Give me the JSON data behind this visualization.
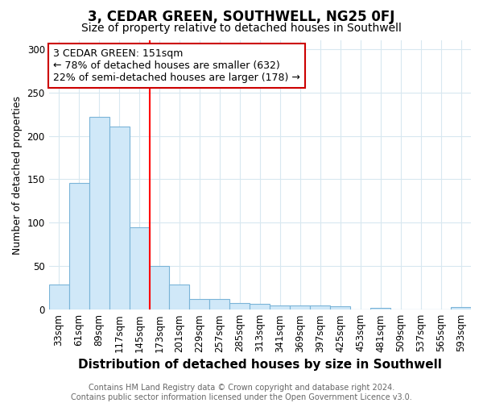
{
  "title": "3, CEDAR GREEN, SOUTHWELL, NG25 0FJ",
  "subtitle": "Size of property relative to detached houses in Southwell",
  "xlabel": "Distribution of detached houses by size in Southwell",
  "ylabel": "Number of detached properties",
  "categories": [
    "33sqm",
    "61sqm",
    "89sqm",
    "117sqm",
    "145sqm",
    "173sqm",
    "201sqm",
    "229sqm",
    "257sqm",
    "285sqm",
    "313sqm",
    "341sqm",
    "369sqm",
    "397sqm",
    "425sqm",
    "453sqm",
    "481sqm",
    "509sqm",
    "537sqm",
    "565sqm",
    "593sqm"
  ],
  "values": [
    29,
    146,
    222,
    211,
    95,
    50,
    29,
    12,
    12,
    8,
    7,
    5,
    5,
    5,
    4,
    0,
    2,
    0,
    0,
    0,
    3
  ],
  "bar_color": "#d0e8f8",
  "bar_edge_color": "#7ab4d8",
  "ylim": [
    0,
    310
  ],
  "yticks": [
    0,
    50,
    100,
    150,
    200,
    250,
    300
  ],
  "red_line_x": 4.5,
  "annotation_text": "3 CEDAR GREEN: 151sqm\n← 78% of detached houses are smaller (632)\n22% of semi-detached houses are larger (178) →",
  "annotation_box_color": "#ffffff",
  "annotation_box_edge": "#cc0000",
  "footnote": "Contains HM Land Registry data © Crown copyright and database right 2024.\nContains public sector information licensed under the Open Government Licence v3.0.",
  "background_color": "#ffffff",
  "plot_bg_color": "#ffffff",
  "grid_color": "#d8e8f0",
  "title_fontsize": 12,
  "subtitle_fontsize": 10,
  "xlabel_fontsize": 11,
  "ylabel_fontsize": 9,
  "tick_fontsize": 8.5,
  "footnote_fontsize": 7,
  "ann_fontsize": 9
}
